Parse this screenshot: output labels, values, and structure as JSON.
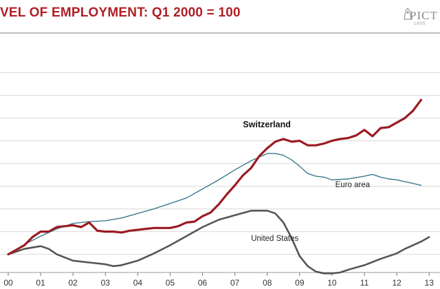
{
  "header": {
    "title": "VEL OF EMPLOYMENT: Q1 2000 = 100",
    "brand": "PICT",
    "brand_year": "1805"
  },
  "chart_data": {
    "type": "line",
    "title": "VEL OF EMPLOYMENT: Q1 2000 = 100",
    "xlabel": "",
    "ylabel": "",
    "xlim": [
      2000,
      2013.25
    ],
    "ylim": [
      98,
      123
    ],
    "x_ticks": [
      {
        "x": 2000,
        "label": "00"
      },
      {
        "x": 2001,
        "label": "01"
      },
      {
        "x": 2002,
        "label": "02"
      },
      {
        "x": 2003,
        "label": "03"
      },
      {
        "x": 2004,
        "label": "04"
      },
      {
        "x": 2005,
        "label": "05"
      },
      {
        "x": 2006,
        "label": "06"
      },
      {
        "x": 2007,
        "label": "07"
      },
      {
        "x": 2008,
        "label": "08"
      },
      {
        "x": 2009,
        "label": "09"
      },
      {
        "x": 2010,
        "label": "10"
      },
      {
        "x": 2011,
        "label": "11"
      },
      {
        "x": 2012,
        "label": "12"
      },
      {
        "x": 2013,
        "label": "13"
      }
    ],
    "y_gridlines": [
      100,
      102.5,
      105,
      107.5,
      110,
      112.5,
      115,
      117.5,
      120
    ],
    "grid": "horizontal",
    "colors": {
      "switzerland": "#9b1b22",
      "euro_area": "#3a7a8c",
      "united_states": "#555555"
    },
    "series": [
      {
        "name": "Switzerland",
        "key": "switzerland",
        "points": [
          [
            2000.0,
            100.0
          ],
          [
            2000.25,
            100.5
          ],
          [
            2000.5,
            101.0
          ],
          [
            2000.75,
            101.9
          ],
          [
            2001.0,
            102.5
          ],
          [
            2001.25,
            102.5
          ],
          [
            2001.5,
            103.0
          ],
          [
            2001.75,
            103.1
          ],
          [
            2002.0,
            103.2
          ],
          [
            2002.25,
            103.0
          ],
          [
            2002.5,
            103.5
          ],
          [
            2002.75,
            102.6
          ],
          [
            2003.0,
            102.5
          ],
          [
            2003.25,
            102.5
          ],
          [
            2003.5,
            102.4
          ],
          [
            2003.75,
            102.6
          ],
          [
            2004.0,
            102.7
          ],
          [
            2004.25,
            102.8
          ],
          [
            2004.5,
            102.9
          ],
          [
            2004.75,
            102.9
          ],
          [
            2005.0,
            102.9
          ],
          [
            2005.25,
            103.1
          ],
          [
            2005.5,
            103.5
          ],
          [
            2005.75,
            103.6
          ],
          [
            2006.0,
            104.2
          ],
          [
            2006.25,
            104.6
          ],
          [
            2006.5,
            105.5
          ],
          [
            2006.75,
            106.6
          ],
          [
            2007.0,
            107.6
          ],
          [
            2007.25,
            108.7
          ],
          [
            2007.5,
            109.5
          ],
          [
            2007.75,
            110.8
          ],
          [
            2008.0,
            111.7
          ],
          [
            2008.25,
            112.4
          ],
          [
            2008.5,
            112.7
          ],
          [
            2008.75,
            112.4
          ],
          [
            2009.0,
            112.5
          ],
          [
            2009.25,
            112.0
          ],
          [
            2009.5,
            112.0
          ],
          [
            2009.75,
            112.2
          ],
          [
            2010.0,
            112.5
          ],
          [
            2010.25,
            112.7
          ],
          [
            2010.5,
            112.8
          ],
          [
            2010.75,
            113.1
          ],
          [
            2011.0,
            113.7
          ],
          [
            2011.25,
            113.0
          ],
          [
            2011.5,
            113.9
          ],
          [
            2011.75,
            114.0
          ],
          [
            2012.0,
            114.5
          ],
          [
            2012.25,
            115.0
          ],
          [
            2012.5,
            115.8
          ],
          [
            2012.75,
            117.0
          ]
        ]
      },
      {
        "name": "Euro area",
        "key": "euro_area",
        "points": [
          [
            2000.0,
            100.0
          ],
          [
            2000.5,
            101.1
          ],
          [
            2001.0,
            102.0
          ],
          [
            2001.5,
            102.8
          ],
          [
            2002.0,
            103.4
          ],
          [
            2002.5,
            103.6
          ],
          [
            2003.0,
            103.7
          ],
          [
            2003.5,
            104.0
          ],
          [
            2004.0,
            104.5
          ],
          [
            2004.5,
            105.0
          ],
          [
            2005.0,
            105.6
          ],
          [
            2005.5,
            106.2
          ],
          [
            2006.0,
            107.2
          ],
          [
            2006.5,
            108.2
          ],
          [
            2007.0,
            109.3
          ],
          [
            2007.5,
            110.3
          ],
          [
            2008.0,
            111.1
          ],
          [
            2008.25,
            111.1
          ],
          [
            2008.5,
            110.9
          ],
          [
            2008.75,
            110.4
          ],
          [
            2009.0,
            109.7
          ],
          [
            2009.25,
            108.9
          ],
          [
            2009.5,
            108.6
          ],
          [
            2009.75,
            108.5
          ],
          [
            2010.0,
            108.2
          ],
          [
            2010.5,
            108.3
          ],
          [
            2011.0,
            108.6
          ],
          [
            2011.25,
            108.8
          ],
          [
            2011.5,
            108.5
          ],
          [
            2011.75,
            108.3
          ],
          [
            2012.0,
            108.2
          ],
          [
            2012.5,
            107.8
          ],
          [
            2012.75,
            107.6
          ]
        ]
      },
      {
        "name": "United States",
        "key": "united_states",
        "points": [
          [
            2000.0,
            100.0
          ],
          [
            2000.5,
            100.6
          ],
          [
            2001.0,
            100.9
          ],
          [
            2001.25,
            100.6
          ],
          [
            2001.5,
            100.0
          ],
          [
            2002.0,
            99.3
          ],
          [
            2002.5,
            99.1
          ],
          [
            2003.0,
            98.9
          ],
          [
            2003.25,
            98.7
          ],
          [
            2003.5,
            98.8
          ],
          [
            2004.0,
            99.3
          ],
          [
            2004.5,
            100.1
          ],
          [
            2005.0,
            101.0
          ],
          [
            2005.5,
            102.0
          ],
          [
            2006.0,
            103.0
          ],
          [
            2006.5,
            103.8
          ],
          [
            2007.0,
            104.3
          ],
          [
            2007.5,
            104.8
          ],
          [
            2007.75,
            104.8
          ],
          [
            2008.0,
            104.8
          ],
          [
            2008.25,
            104.5
          ],
          [
            2008.5,
            103.5
          ],
          [
            2008.75,
            101.8
          ],
          [
            2009.0,
            99.8
          ],
          [
            2009.25,
            98.7
          ],
          [
            2009.5,
            98.1
          ],
          [
            2009.75,
            97.9
          ],
          [
            2010.0,
            97.9
          ],
          [
            2010.25,
            98.0
          ],
          [
            2010.5,
            98.3
          ],
          [
            2011.0,
            98.8
          ],
          [
            2011.5,
            99.5
          ],
          [
            2012.0,
            100.1
          ],
          [
            2012.25,
            100.6
          ],
          [
            2012.5,
            101.0
          ],
          [
            2012.75,
            101.4
          ],
          [
            2013.0,
            101.9
          ]
        ]
      }
    ],
    "annotations": [
      {
        "text": "Switzerland",
        "series": "switzerland",
        "x": 2007.25,
        "y": 114.0,
        "bold": true
      },
      {
        "text": "Euro area",
        "series": "euro_area",
        "x": 2010.1,
        "y": 107.4,
        "bold": false
      },
      {
        "text": "United States",
        "series": "united_states",
        "x": 2007.5,
        "y": 101.5,
        "bold": false
      }
    ]
  }
}
